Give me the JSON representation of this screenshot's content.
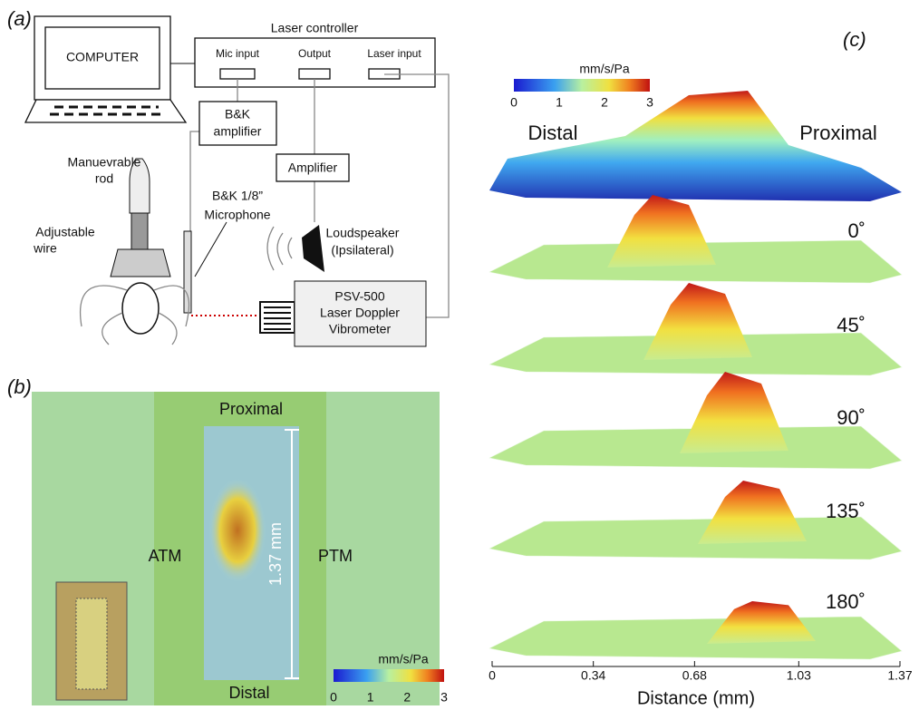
{
  "panel_a": {
    "label": "(a)",
    "computer": "COMPUTER",
    "laser_controller": "Laser controller",
    "mic_input": "Mic input",
    "output": "Output",
    "laser_input": "Laser input",
    "bk_amplifier": [
      "B&K",
      "amplifier"
    ],
    "amplifier": "Amplifier",
    "rod": [
      "Manuevrable",
      "rod"
    ],
    "microphone": [
      "B&K 1/8”",
      "Microphone"
    ],
    "loudspeaker": [
      "Loudspeaker",
      "(Ipsilateral)"
    ],
    "wire": [
      "Adjustable",
      "wire"
    ],
    "vibrometer": [
      "PSV-500",
      "Laser Doppler",
      "Vibrometer"
    ]
  },
  "panel_b": {
    "label": "(b)",
    "proximal": "Proximal",
    "distal": "Distal",
    "atm": "ATM",
    "ptm": "PTM",
    "scale_bar": "1.37 mm",
    "colorbar": {
      "label": "mm/s/Pa",
      "lim": [
        0,
        3
      ],
      "ticks": [
        0,
        1,
        2,
        3
      ]
    }
  },
  "panel_c": {
    "label": "(c)",
    "colorbar": {
      "label": "mm/s/Pa",
      "lim": [
        0,
        3
      ],
      "ticks": [
        0,
        1,
        2,
        3
      ]
    },
    "distal": "Distal",
    "proximal": "Proximal",
    "angles": [
      "0˚",
      "45˚",
      "90˚",
      "135˚",
      "180˚"
    ],
    "xlabel": "Distance (mm)",
    "xlim": [
      0,
      1.37
    ],
    "xticks": [
      0,
      0.34,
      0.68,
      1.03,
      1.37
    ]
  }
}
